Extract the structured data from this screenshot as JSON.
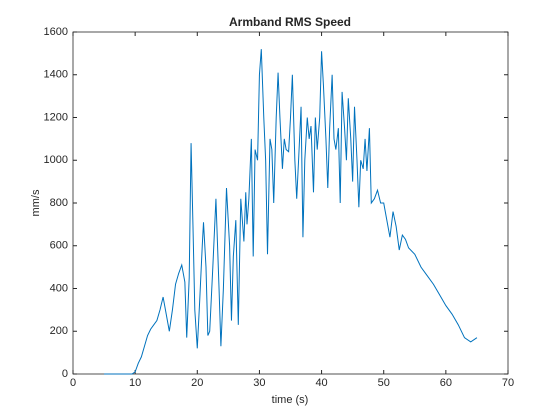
{
  "chart_data": {
    "type": "line",
    "title": "Armband RMS Speed",
    "xlabel": "time (s)",
    "ylabel": "mm/s",
    "xlim": [
      0,
      70
    ],
    "xticks": [
      0,
      10,
      20,
      30,
      40,
      50,
      60,
      70
    ],
    "ylim": [
      0,
      1600
    ],
    "yticks": [
      0,
      200,
      400,
      600,
      800,
      1000,
      1200,
      1400,
      1600
    ],
    "series": [
      {
        "color": "#0072bd",
        "x": [
          5,
          9.5,
          10,
          10.5,
          11,
          11.5,
          12,
          12.5,
          13,
          13.5,
          14,
          14.5,
          15,
          15.5,
          16,
          16.5,
          17,
          17.5,
          18,
          18.3,
          18.7,
          19,
          19.3,
          19.6,
          20,
          20.4,
          20.8,
          21,
          21.4,
          21.7,
          22,
          22.5,
          23,
          23.5,
          23.8,
          24.2,
          24.7,
          25.2,
          25.5,
          25.8,
          26.2,
          26.6,
          27,
          27.5,
          27.8,
          28,
          28.3,
          28.7,
          29,
          29.3,
          29.7,
          30,
          30.3,
          30.7,
          31,
          31.3,
          31.7,
          32,
          32.3,
          32.7,
          33,
          33.3,
          33.7,
          34,
          34.3,
          34.7,
          35,
          35.3,
          35.7,
          36,
          36.3,
          36.7,
          37,
          37.3,
          37.7,
          38,
          38.3,
          38.7,
          39,
          39.3,
          39.7,
          40,
          40.3,
          40.7,
          41,
          41.3,
          41.7,
          42,
          42.3,
          42.7,
          43,
          43.3,
          43.7,
          44,
          44.3,
          44.7,
          45,
          45.3,
          45.7,
          46,
          46.3,
          46.7,
          47,
          47.3,
          47.7,
          48,
          48.5,
          49,
          49.5,
          50,
          50.5,
          51,
          51.5,
          52,
          52.5,
          53,
          53.5,
          54,
          55,
          56,
          57,
          58,
          59,
          60,
          61,
          62,
          63,
          64,
          65
        ],
        "values": [
          0,
          0,
          10,
          50,
          80,
          130,
          180,
          210,
          230,
          250,
          300,
          360,
          280,
          200,
          300,
          420,
          470,
          510,
          430,
          170,
          450,
          1080,
          700,
          300,
          120,
          350,
          600,
          710,
          500,
          180,
          200,
          500,
          820,
          400,
          130,
          400,
          870,
          600,
          250,
          550,
          720,
          230,
          820,
          620,
          850,
          700,
          820,
          1100,
          550,
          1050,
          1000,
          1400,
          1520,
          1200,
          1000,
          560,
          1100,
          1050,
          800,
          1200,
          1410,
          1200,
          960,
          1100,
          1050,
          1040,
          1200,
          1400,
          1000,
          820,
          1000,
          1250,
          640,
          1000,
          1200,
          1100,
          1160,
          850,
          1200,
          1050,
          1200,
          1510,
          1350,
          1100,
          870,
          1150,
          1400,
          1100,
          1050,
          1150,
          800,
          1320,
          1150,
          1000,
          1290,
          1100,
          900,
          1250,
          1000,
          780,
          1000,
          960,
          1100,
          950,
          1150,
          800,
          820,
          860,
          800,
          800,
          720,
          640,
          760,
          690,
          580,
          650,
          630,
          590,
          560,
          500,
          460,
          420,
          370,
          320,
          280,
          230,
          170,
          150,
          170
        ]
      }
    ]
  }
}
